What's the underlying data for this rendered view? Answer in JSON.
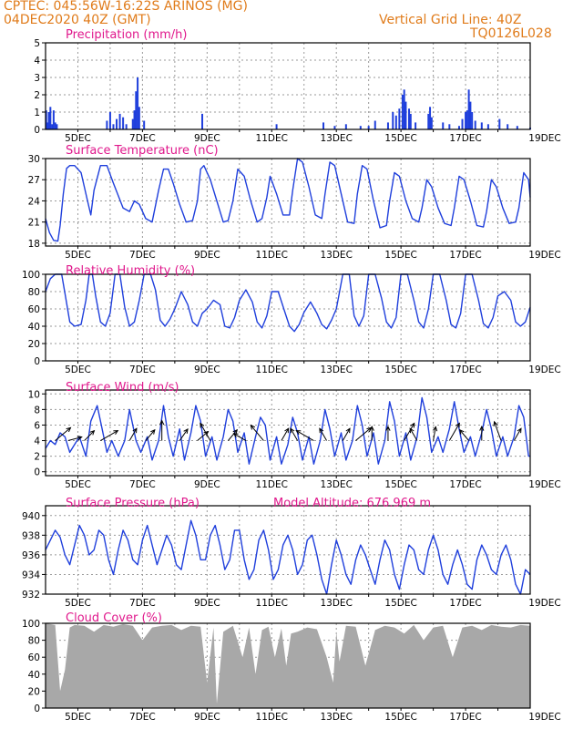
{
  "header": {
    "line1": "CPTEC:   045:56W-16:22S   ARINOS (MG)",
    "line2": "04DEC2020 40Z (GMT)",
    "right1": "Vertical Grid Line: 40Z",
    "right2": "TQ0126L028"
  },
  "colors": {
    "header": "#e07b1a",
    "title": "#e0188c",
    "line": "#1f3fdc",
    "bar": "#1f3fdc",
    "cloud": "#a8a8a8"
  },
  "x_axis": {
    "start_day": 4,
    "end_day": 19,
    "tick_labels": [
      "5DEC",
      "7DEC",
      "9DEC",
      "11DEC",
      "13DEC",
      "15DEC",
      "17DEC",
      "19DEC"
    ]
  },
  "chart_data": [
    {
      "id": "precip",
      "type": "bar",
      "title": "Precipitation (mm/h)",
      "ylim": [
        0,
        5
      ],
      "yticks": [
        0,
        1,
        2,
        3,
        4,
        5
      ],
      "note": "x = day of December 2020, y = precipitation rate",
      "x": [
        4.02,
        4.06,
        4.1,
        4.15,
        4.2,
        4.25,
        4.3,
        4.35,
        5.9,
        6.0,
        6.1,
        6.2,
        6.3,
        6.4,
        6.5,
        6.7,
        6.75,
        6.8,
        6.85,
        6.9,
        7.05,
        8.85,
        11.15,
        12.6,
        12.95,
        13.3,
        13.75,
        14.0,
        14.2,
        14.6,
        14.75,
        14.85,
        14.95,
        15.05,
        15.1,
        15.15,
        15.25,
        15.3,
        15.45,
        15.85,
        15.9,
        15.95,
        16.3,
        16.5,
        16.8,
        16.9,
        17.0,
        17.05,
        17.1,
        17.15,
        17.2,
        17.3,
        17.5,
        17.7,
        18.05,
        18.3,
        18.6,
        19.0
      ],
      "values": [
        1.1,
        0.4,
        1.0,
        1.3,
        0.3,
        1.1,
        0.4,
        0.3,
        0.5,
        1.0,
        0.3,
        0.6,
        0.9,
        0.7,
        0.3,
        0.6,
        1.1,
        2.2,
        3.0,
        1.3,
        0.5,
        0.9,
        0.3,
        0.4,
        0.2,
        0.3,
        0.2,
        0.2,
        0.5,
        0.4,
        1.0,
        0.8,
        1.2,
        2.0,
        2.3,
        1.6,
        1.2,
        0.9,
        0.4,
        0.9,
        1.3,
        0.7,
        0.4,
        0.3,
        0.2,
        0.6,
        1.0,
        1.1,
        2.3,
        1.6,
        1.0,
        0.5,
        0.4,
        0.3,
        0.6,
        0.3,
        0.2,
        0.1
      ]
    },
    {
      "id": "temp",
      "type": "line",
      "title": "Surface Temperature (nC)",
      "ylim": [
        17.6,
        30
      ],
      "yticks": [
        18,
        21,
        24,
        27,
        30
      ],
      "x": [
        4.0,
        4.12,
        4.25,
        4.38,
        4.45,
        4.55,
        4.65,
        4.75,
        4.9,
        5.1,
        5.3,
        5.4,
        5.5,
        5.7,
        5.9,
        6.1,
        6.4,
        6.6,
        6.75,
        6.9,
        7.1,
        7.3,
        7.5,
        7.65,
        7.8,
        7.95,
        8.15,
        8.35,
        8.55,
        8.7,
        8.8,
        8.9,
        9.1,
        9.3,
        9.5,
        9.65,
        9.8,
        9.95,
        10.15,
        10.35,
        10.55,
        10.7,
        10.85,
        10.95,
        11.15,
        11.35,
        11.55,
        11.65,
        11.8,
        11.95,
        12.15,
        12.35,
        12.55,
        12.65,
        12.8,
        12.95,
        13.15,
        13.35,
        13.55,
        13.65,
        13.8,
        13.95,
        14.15,
        14.35,
        14.55,
        14.65,
        14.8,
        14.95,
        15.15,
        15.35,
        15.55,
        15.65,
        15.8,
        15.95,
        16.15,
        16.35,
        16.55,
        16.65,
        16.8,
        16.95,
        17.15,
        17.35,
        17.55,
        17.65,
        17.8,
        17.95,
        18.15,
        18.35,
        18.55,
        18.65,
        18.8,
        18.95,
        19.0
      ],
      "values": [
        21.5,
        19.5,
        18.4,
        18.3,
        20.5,
        25.0,
        28.6,
        29.0,
        29.0,
        28.0,
        24.0,
        22.0,
        25.5,
        29.0,
        29.0,
        26.5,
        23.0,
        22.5,
        24.0,
        23.5,
        21.5,
        21.0,
        25.5,
        28.5,
        28.5,
        26.5,
        23.5,
        21.0,
        21.2,
        24.0,
        28.5,
        29.0,
        27.0,
        24.0,
        21.0,
        21.2,
        24.0,
        28.5,
        27.5,
        24.0,
        21.0,
        21.5,
        24.5,
        27.5,
        25.0,
        22.0,
        22.0,
        25.5,
        30.0,
        29.5,
        26.0,
        22.0,
        21.5,
        25.0,
        29.5,
        29.0,
        25.0,
        21.0,
        20.8,
        25.0,
        29.0,
        28.5,
        24.0,
        20.2,
        20.5,
        24.0,
        28.0,
        27.5,
        24.0,
        21.5,
        21.0,
        23.0,
        27.0,
        26.0,
        23.0,
        20.8,
        20.5,
        23.0,
        27.5,
        27.0,
        24.0,
        20.5,
        20.3,
        22.5,
        27.0,
        26.0,
        23.0,
        20.8,
        21.0,
        23.0,
        28.0,
        27.0,
        24.5
      ]
    },
    {
      "id": "rh",
      "type": "line",
      "title": "Relative Humidity (%)",
      "ylim": [
        0,
        100
      ],
      "yticks": [
        0,
        20,
        40,
        60,
        80,
        100
      ],
      "x": [
        4.0,
        4.15,
        4.3,
        4.5,
        4.6,
        4.75,
        4.9,
        5.1,
        5.25,
        5.35,
        5.45,
        5.55,
        5.7,
        5.85,
        6.0,
        6.15,
        6.3,
        6.45,
        6.6,
        6.75,
        6.9,
        7.05,
        7.25,
        7.4,
        7.55,
        7.7,
        7.85,
        8.0,
        8.2,
        8.4,
        8.55,
        8.7,
        8.85,
        9.0,
        9.2,
        9.4,
        9.55,
        9.7,
        9.85,
        10.0,
        10.2,
        10.4,
        10.55,
        10.7,
        10.85,
        11.0,
        11.2,
        11.4,
        11.55,
        11.7,
        11.85,
        12.0,
        12.2,
        12.4,
        12.55,
        12.7,
        12.85,
        13.0,
        13.2,
        13.4,
        13.55,
        13.7,
        13.85,
        14.0,
        14.2,
        14.4,
        14.55,
        14.7,
        14.85,
        15.0,
        15.2,
        15.4,
        15.55,
        15.7,
        15.85,
        16.0,
        16.2,
        16.4,
        16.55,
        16.7,
        16.85,
        17.0,
        17.2,
        17.4,
        17.55,
        17.7,
        17.85,
        18.0,
        18.2,
        18.4,
        18.55,
        18.7,
        18.85,
        19.0
      ],
      "values": [
        80,
        95,
        100,
        100,
        78,
        45,
        40,
        42,
        70,
        100,
        100,
        75,
        45,
        40,
        55,
        100,
        100,
        62,
        40,
        45,
        70,
        100,
        100,
        82,
        47,
        40,
        48,
        60,
        80,
        65,
        45,
        40,
        55,
        60,
        70,
        65,
        40,
        38,
        50,
        70,
        82,
        68,
        45,
        38,
        52,
        80,
        80,
        57,
        40,
        34,
        42,
        56,
        68,
        55,
        42,
        37,
        47,
        60,
        100,
        100,
        52,
        40,
        52,
        100,
        100,
        72,
        45,
        38,
        50,
        100,
        100,
        70,
        45,
        38,
        60,
        100,
        100,
        70,
        42,
        38,
        55,
        100,
        100,
        70,
        43,
        38,
        50,
        75,
        80,
        70,
        45,
        40,
        45,
        62
      ]
    },
    {
      "id": "wind",
      "type": "line",
      "title": "Surface Wind (m/s)",
      "ylim": [
        -0.5,
        10.5
      ],
      "yticks": [
        0,
        2,
        4,
        6,
        8,
        10
      ],
      "x": [
        4.0,
        4.15,
        4.3,
        4.45,
        4.6,
        4.75,
        4.9,
        5.05,
        5.25,
        5.4,
        5.6,
        5.75,
        5.9,
        6.05,
        6.25,
        6.45,
        6.6,
        6.8,
        6.95,
        7.15,
        7.3,
        7.5,
        7.65,
        7.8,
        7.95,
        8.15,
        8.3,
        8.5,
        8.65,
        8.8,
        8.95,
        9.15,
        9.3,
        9.5,
        9.65,
        9.8,
        9.95,
        10.15,
        10.3,
        10.5,
        10.65,
        10.8,
        10.95,
        11.15,
        11.3,
        11.5,
        11.65,
        11.8,
        11.95,
        12.15,
        12.3,
        12.5,
        12.65,
        12.8,
        12.95,
        13.15,
        13.3,
        13.5,
        13.65,
        13.8,
        13.95,
        14.15,
        14.3,
        14.5,
        14.65,
        14.8,
        14.95,
        15.15,
        15.3,
        15.5,
        15.65,
        15.8,
        15.95,
        16.15,
        16.3,
        16.5,
        16.65,
        16.8,
        16.95,
        17.15,
        17.3,
        17.5,
        17.65,
        17.8,
        17.95,
        18.15,
        18.3,
        18.5,
        18.65,
        18.8,
        18.95,
        19.0
      ],
      "values": [
        3.0,
        4.0,
        3.5,
        5.0,
        4.5,
        2.5,
        3.5,
        4.5,
        2.0,
        6.5,
        8.5,
        5.5,
        2.5,
        4.0,
        2.0,
        4.0,
        8.0,
        4.0,
        2.5,
        4.5,
        1.5,
        4.0,
        8.5,
        4.5,
        2.0,
        5.5,
        1.5,
        5.0,
        8.5,
        6.5,
        2.0,
        4.5,
        1.5,
        4.5,
        8.0,
        6.5,
        2.5,
        5.0,
        1.0,
        4.5,
        7.0,
        6.0,
        1.5,
        4.5,
        1.0,
        3.5,
        7.0,
        5.0,
        1.5,
        4.5,
        1.0,
        4.0,
        8.0,
        5.5,
        2.0,
        5.0,
        1.5,
        4.0,
        8.5,
        6.0,
        2.0,
        5.0,
        1.0,
        4.0,
        9.0,
        6.5,
        2.0,
        5.0,
        1.5,
        4.5,
        9.5,
        7.0,
        2.5,
        4.5,
        2.5,
        5.5,
        9.0,
        5.5,
        2.5,
        4.5,
        2.0,
        5.0,
        8.0,
        5.5,
        2.0,
        4.5,
        2.0,
        4.5,
        8.5,
        7.0,
        2.0,
        2.0
      ],
      "arrows": {
        "x": [
          4.3,
          4.7,
          5.2,
          5.7,
          6.6,
          7.1,
          7.6,
          8.15,
          8.7,
          9.1,
          9.65,
          10.2,
          10.75,
          11.3,
          11.8,
          12.3,
          12.7,
          13.2,
          13.6,
          14.1,
          14.6,
          15.1,
          15.5,
          16.0,
          16.5,
          17.1,
          17.5,
          18.1,
          18.5
        ],
        "dir_deg": [
          40,
          15,
          45,
          30,
          60,
          50,
          90,
          55,
          40,
          120,
          50,
          150,
          130,
          60,
          120,
          150,
          120,
          60,
          40,
          90,
          90,
          60,
          120,
          80,
          60,
          130,
          90,
          110,
          60
        ]
      }
    },
    {
      "id": "press",
      "type": "line",
      "title": "Surface Pressure (hPa)",
      "annotation": "Model Altitude: 676.969 m",
      "ylim": [
        932,
        941
      ],
      "yticks": [
        932,
        934,
        936,
        938,
        940
      ],
      "x": [
        4.0,
        4.15,
        4.3,
        4.45,
        4.6,
        4.75,
        4.9,
        5.05,
        5.2,
        5.35,
        5.5,
        5.65,
        5.8,
        5.95,
        6.1,
        6.25,
        6.4,
        6.55,
        6.7,
        6.85,
        7.0,
        7.15,
        7.3,
        7.45,
        7.6,
        7.75,
        7.9,
        8.05,
        8.2,
        8.35,
        8.5,
        8.65,
        8.8,
        8.95,
        9.1,
        9.25,
        9.4,
        9.55,
        9.7,
        9.85,
        10.0,
        10.15,
        10.3,
        10.45,
        10.6,
        10.75,
        10.9,
        11.05,
        11.2,
        11.35,
        11.5,
        11.65,
        11.8,
        11.95,
        12.1,
        12.25,
        12.4,
        12.55,
        12.7,
        12.85,
        13.0,
        13.15,
        13.3,
        13.45,
        13.6,
        13.75,
        13.9,
        14.05,
        14.2,
        14.35,
        14.5,
        14.65,
        14.8,
        14.95,
        15.1,
        15.25,
        15.4,
        15.55,
        15.7,
        15.85,
        16.0,
        16.15,
        16.3,
        16.45,
        16.6,
        16.75,
        16.9,
        17.05,
        17.2,
        17.35,
        17.5,
        17.65,
        17.8,
        17.95,
        18.1,
        18.25,
        18.4,
        18.55,
        18.7,
        18.85,
        19.0
      ],
      "values": [
        936.5,
        937.5,
        938.5,
        937.8,
        936.0,
        935.0,
        937.0,
        939.0,
        938.0,
        936.0,
        936.5,
        938.5,
        938.0,
        935.5,
        934.0,
        936.5,
        938.5,
        937.5,
        935.5,
        935.0,
        937.5,
        939.0,
        937.0,
        935.0,
        936.5,
        938.0,
        937.0,
        935.0,
        934.5,
        937.0,
        939.5,
        938.0,
        935.5,
        935.5,
        938.0,
        939.0,
        937.0,
        934.5,
        935.5,
        938.5,
        938.5,
        935.5,
        933.5,
        934.5,
        937.5,
        938.5,
        936.5,
        933.5,
        934.5,
        937.0,
        938.0,
        936.5,
        934.0,
        935.0,
        937.5,
        938.0,
        936.0,
        933.5,
        932.0,
        935.0,
        937.5,
        936.0,
        934.0,
        933.0,
        935.5,
        937.0,
        936.0,
        934.5,
        933.0,
        935.5,
        937.5,
        936.5,
        934.0,
        932.5,
        935.0,
        937.0,
        936.5,
        934.5,
        934.0,
        936.5,
        938.0,
        936.5,
        934.0,
        933.0,
        935.0,
        936.5,
        935.0,
        933.0,
        932.5,
        935.5,
        937.0,
        936.0,
        934.5,
        934.0,
        936.0,
        937.0,
        935.5,
        933.0,
        932.0,
        934.5,
        934.0
      ]
    },
    {
      "id": "cloud",
      "type": "area",
      "title": "Cloud Cover (%)",
      "ylim": [
        0,
        100
      ],
      "yticks": [
        0,
        20,
        40,
        60,
        80,
        100
      ],
      "x": [
        4.0,
        4.3,
        4.45,
        4.6,
        4.75,
        4.9,
        5.2,
        5.5,
        5.8,
        6.1,
        6.4,
        6.7,
        7.0,
        7.3,
        7.6,
        7.9,
        8.2,
        8.5,
        8.8,
        9.0,
        9.2,
        9.3,
        9.5,
        9.8,
        10.1,
        10.3,
        10.5,
        10.7,
        10.9,
        11.1,
        11.3,
        11.45,
        11.6,
        11.8,
        12.1,
        12.4,
        12.7,
        12.9,
        13.0,
        13.1,
        13.3,
        13.6,
        13.9,
        14.2,
        14.5,
        14.8,
        15.1,
        15.4,
        15.7,
        16.0,
        16.3,
        16.6,
        16.9,
        17.2,
        17.5,
        17.8,
        18.1,
        18.4,
        18.7,
        19.0
      ],
      "values": [
        100,
        98,
        20,
        45,
        95,
        98,
        97,
        90,
        98,
        96,
        99,
        97,
        80,
        95,
        97,
        98,
        92,
        97,
        96,
        30,
        95,
        5,
        90,
        97,
        60,
        95,
        40,
        92,
        96,
        60,
        94,
        50,
        88,
        90,
        95,
        93,
        60,
        30,
        90,
        55,
        97,
        96,
        50,
        92,
        97,
        95,
        88,
        98,
        80,
        95,
        97,
        60,
        95,
        97,
        92,
        98,
        96,
        95,
        98,
        97
      ]
    }
  ]
}
